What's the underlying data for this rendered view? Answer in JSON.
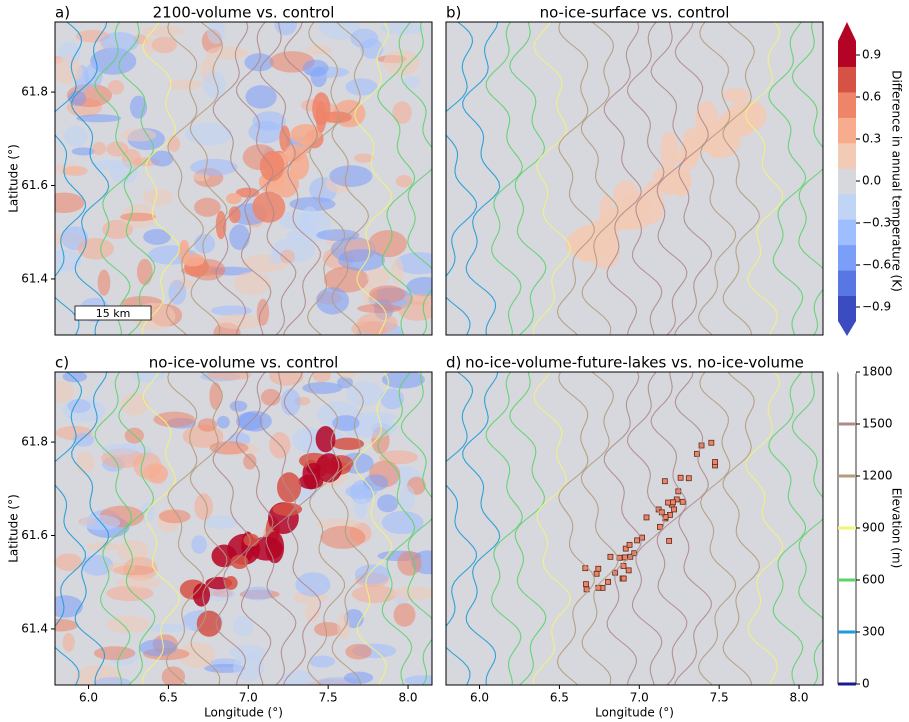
{
  "chart_data": [
    {
      "type": "heatmap",
      "panel_label": "a)",
      "title": "2100-volume vs. control",
      "ylabel": "Latitude (°)",
      "xlim": [
        5.79,
        8.15
      ],
      "ylim": [
        61.28,
        61.95
      ],
      "yticks": [
        61.4,
        61.6,
        61.8
      ],
      "scale_bar": "15 km"
    },
    {
      "type": "heatmap",
      "panel_label": "b)",
      "title": "no-ice-surface vs. control",
      "xlim": [
        5.79,
        8.15
      ],
      "ylim": [
        61.28,
        61.95
      ]
    },
    {
      "type": "heatmap",
      "panel_label": "c)",
      "title": "no-ice-volume vs. control",
      "ylabel": "Latitude (°)",
      "xlabel": "Longitude (°)",
      "xlim": [
        5.79,
        8.15
      ],
      "ylim": [
        61.28,
        61.95
      ],
      "yticks": [
        61.4,
        61.6,
        61.8
      ],
      "xticks": [
        {
          "value": 6,
          "label": "6.0"
        },
        {
          "value": 6.5,
          "label": "6.5"
        },
        {
          "value": 7,
          "label": "7.0"
        },
        {
          "value": 7.5,
          "label": "7.5"
        },
        {
          "value": 8,
          "label": "8.0"
        }
      ]
    },
    {
      "type": "heatmap",
      "panel_label": "d)",
      "title": "no-ice-volume-future-lakes vs. no-ice-volume",
      "xlabel": "Longitude (°)",
      "xlim": [
        5.79,
        8.15
      ],
      "ylim": [
        61.28,
        61.95
      ],
      "xticks": [
        {
          "value": 6,
          "label": "6.0"
        },
        {
          "value": 6.5,
          "label": "6.5"
        },
        {
          "value": 7,
          "label": "7.0"
        },
        {
          "value": 7.5,
          "label": "7.5"
        },
        {
          "value": 8,
          "label": "8.0"
        }
      ]
    },
    {
      "type": "colorbar",
      "label": "Difference in annual temperature (K)",
      "ylim": [
        -1.0,
        1.0
      ],
      "extend": "both",
      "yticks": [
        {
          "value": -0.9,
          "label": "−0.9"
        },
        {
          "value": -0.6,
          "label": "−0.6"
        },
        {
          "value": -0.3,
          "label": "−0.3"
        },
        {
          "value": 0,
          "label": "0.0"
        },
        0.3,
        0.6,
        0.9
      ],
      "colors": [
        "#3b4cc0",
        "#5977e3",
        "#7b9ff9",
        "#9ebeff",
        "#c0d4f5",
        "#d6d8de",
        "#f2cbb7",
        "#f7ac8e",
        "#ee8468",
        "#d65244",
        "#b40426"
      ]
    },
    {
      "type": "contour_colorbar",
      "label": "Elevation (m)",
      "ylim": [
        0,
        1800
      ],
      "yticks": [
        0,
        300,
        600,
        900,
        1200,
        1500,
        1800
      ],
      "colors": [
        "#1a1a8c",
        "#1f9ad6",
        "#5ed16a",
        "#f3f37a",
        "#b59b7c",
        "#b08a8a",
        "#ffffff"
      ]
    }
  ]
}
